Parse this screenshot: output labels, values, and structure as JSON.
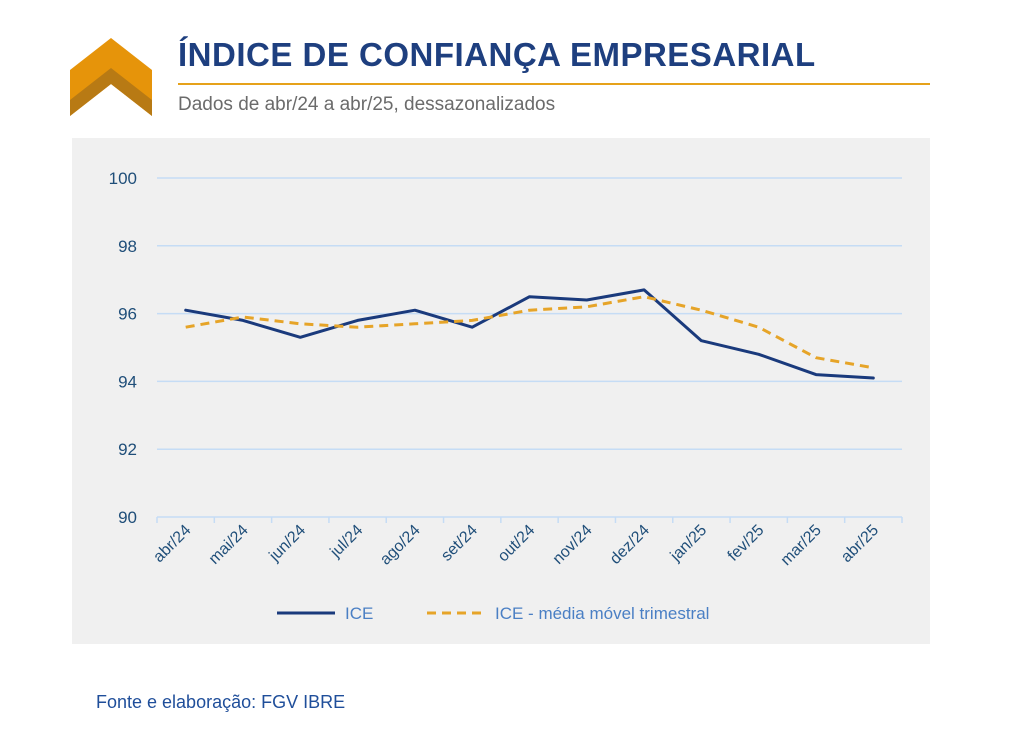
{
  "header": {
    "title": "ÍNDICE DE CONFIANÇA EMPRESARIAL",
    "subtitle": "Dados de abr/24 a abr/25, dessazonalizados",
    "logo_icon": "chevron-up-logo",
    "logo_colors": [
      "#e6940a",
      "#b87a14"
    ]
  },
  "footer": {
    "source": "Fonte e elaboração: FGV IBRE"
  },
  "chart_data": {
    "type": "line",
    "categories": [
      "abr/24",
      "mai/24",
      "jun/24",
      "jul/24",
      "ago/24",
      "set/24",
      "out/24",
      "nov/24",
      "dez/24",
      "jan/25",
      "fev/25",
      "mar/25",
      "abr/25"
    ],
    "series": [
      {
        "name": "ICE",
        "style": "solid",
        "color": "#1a3a7c",
        "values": [
          96.1,
          95.8,
          95.3,
          95.8,
          96.1,
          95.6,
          96.5,
          96.4,
          96.7,
          95.2,
          94.8,
          94.2,
          94.1
        ]
      },
      {
        "name": "ICE - média móvel trimestral",
        "style": "dashed",
        "color": "#e6a428",
        "values": [
          95.6,
          95.9,
          95.7,
          95.6,
          95.7,
          95.8,
          96.1,
          96.2,
          96.5,
          96.1,
          95.6,
          94.7,
          94.4
        ]
      }
    ],
    "ylim": [
      90,
      100
    ],
    "yticks": [
      90,
      92,
      94,
      96,
      98,
      100
    ],
    "grid": true,
    "gridColor": "#c5dcf5",
    "legend": "bottom"
  }
}
